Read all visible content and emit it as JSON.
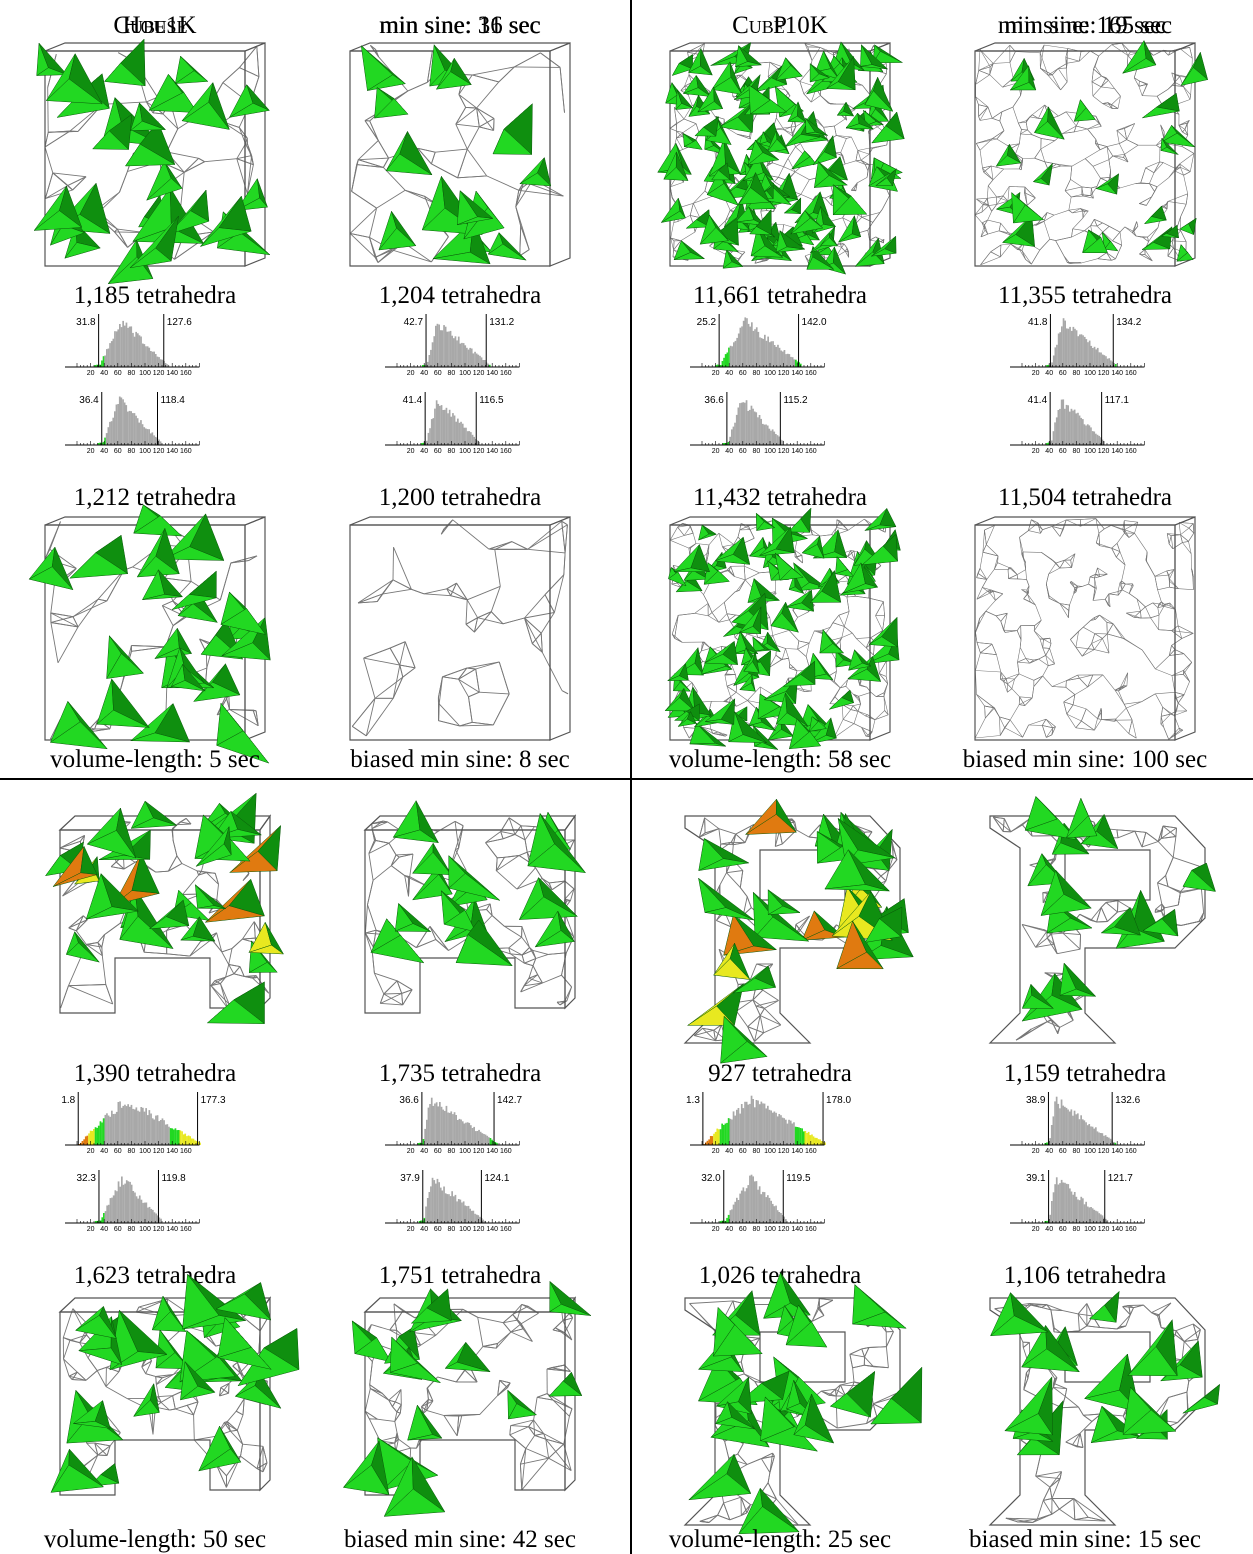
{
  "colors": {
    "green": "#22d822",
    "dark_green": "#0f8f0f",
    "yellow": "#e8e820",
    "orange": "#e07a10",
    "red": "#cc2222",
    "gray": "#a8a8a8",
    "wire": "#777777"
  },
  "tick_labels": [
    "20",
    "40",
    "60",
    "80",
    "100",
    "120",
    "140",
    "160"
  ],
  "quadrants": [
    {
      "title": "Cube1K",
      "initial_time": "min sine: 11 sec",
      "row1_counts": [
        "1,185 tetrahedra",
        "1,204 tetrahedra"
      ],
      "row2_counts": [
        "1,212 tetrahedra",
        "1,200 tetrahedra"
      ],
      "bottom_labels": [
        "volume-length: 5 sec",
        "biased min sine: 8 sec"
      ],
      "histograms": [
        {
          "min": "31.8",
          "max": "127.6",
          "minv": 31.8,
          "maxv": 127.6,
          "peak": 65
        },
        {
          "min": "42.7",
          "max": "131.2",
          "minv": 42.7,
          "maxv": 131.2,
          "peak": 58
        },
        {
          "min": "36.4",
          "max": "118.4",
          "minv": 36.4,
          "maxv": 118.4,
          "peak": 60
        },
        {
          "min": "41.4",
          "max": "116.5",
          "minv": 41.4,
          "maxv": 116.5,
          "peak": 58
        }
      ]
    },
    {
      "title": "Cube10K",
      "initial_time": "min sine: 165 sec",
      "row1_counts": [
        "11,661 tetrahedra",
        "11,355 tetrahedra"
      ],
      "row2_counts": [
        "11,432 tetrahedra",
        "11,504 tetrahedra"
      ],
      "bottom_labels": [
        "volume-length: 58 sec",
        "biased min sine: 100 sec"
      ],
      "histograms": [
        {
          "min": "25.2",
          "max": "142.0",
          "minv": 25.2,
          "maxv": 142.0,
          "peak": 62
        },
        {
          "min": "41.8",
          "max": "134.2",
          "minv": 41.8,
          "maxv": 134.2,
          "peak": 58
        },
        {
          "min": "36.6",
          "max": "115.2",
          "minv": 36.6,
          "maxv": 115.2,
          "peak": 58
        },
        {
          "min": "41.4",
          "max": "117.1",
          "minv": 41.4,
          "maxv": 117.1,
          "peak": 56
        }
      ]
    },
    {
      "title": "House",
      "initial_time": "min sine: 36 sec",
      "row1_counts": [
        "1,390 tetrahedra",
        "1,735 tetrahedra"
      ],
      "row2_counts": [
        "1,623 tetrahedra",
        "1,751 tetrahedra"
      ],
      "bottom_labels": [
        "volume-length: 50 sec",
        "biased min sine: 42 sec"
      ],
      "histograms": [
        {
          "min": "1.8",
          "max": "177.3",
          "minv": 1.8,
          "maxv": 177.3,
          "peak": 70
        },
        {
          "min": "36.6",
          "max": "142.7",
          "minv": 36.6,
          "maxv": 142.7,
          "peak": 48
        },
        {
          "min": "32.3",
          "max": "119.8",
          "minv": 32.3,
          "maxv": 119.8,
          "peak": 65
        },
        {
          "min": "37.9",
          "max": "124.1",
          "minv": 37.9,
          "maxv": 124.1,
          "peak": 50
        }
      ]
    },
    {
      "title": "P",
      "initial_time": "min sine: 19 sec",
      "row1_counts": [
        "927 tetrahedra",
        "1,159 tetrahedra"
      ],
      "row2_counts": [
        "1,026 tetrahedra",
        "1,106 tetrahedra"
      ],
      "bottom_labels": [
        "volume-length: 25 sec",
        "biased min sine: 15 sec"
      ],
      "histograms": [
        {
          "min": "1.3",
          "max": "178.0",
          "minv": 1.3,
          "maxv": 178.0,
          "peak": 70
        },
        {
          "min": "38.9",
          "max": "132.6",
          "minv": 38.9,
          "maxv": 132.6,
          "peak": 48
        },
        {
          "min": "32.0",
          "max": "119.5",
          "minv": 32.0,
          "maxv": 119.5,
          "peak": 70
        },
        {
          "min": "39.1",
          "max": "121.7",
          "minv": 39.1,
          "maxv": 121.7,
          "peak": 48
        }
      ]
    }
  ]
}
